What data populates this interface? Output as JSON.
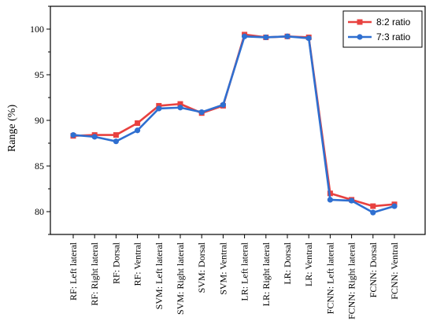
{
  "chart_data": {
    "type": "line",
    "title": "",
    "xlabel": "",
    "ylabel": "Range (%)",
    "ylim": [
      77.5,
      102.5
    ],
    "yticks": [
      80,
      85,
      90,
      95,
      100
    ],
    "grid": false,
    "legend_position": "top-right",
    "categories": [
      "RF: Left lateral",
      "RF: Right lateral",
      "RF: Dorsal",
      "RF: Ventral",
      "SVM: Left lateral",
      "SVM: Right lateral",
      "SVM: Dorsal",
      "SVM: Ventral",
      "LR: Left lateral",
      "LR: Right lateral",
      "LR: Dorsal",
      "LR: Ventral",
      "FCNN: Left lateral",
      "FCNN: Right lateral",
      "FCNN: Dorsal",
      "FCNN: Ventral"
    ],
    "series": [
      {
        "name": "8:2 ratio",
        "color": "#e8413f",
        "marker": "square",
        "values": [
          88.3,
          88.4,
          88.4,
          89.7,
          91.6,
          91.8,
          90.8,
          91.6,
          99.4,
          99.1,
          99.2,
          99.1,
          82.0,
          81.3,
          80.6,
          80.8
        ]
      },
      {
        "name": "7:3 ratio",
        "color": "#2f6fd0",
        "marker": "circle",
        "values": [
          88.4,
          88.2,
          87.7,
          88.9,
          91.3,
          91.4,
          90.9,
          91.7,
          99.2,
          99.1,
          99.2,
          99.0,
          81.3,
          81.2,
          79.9,
          80.6
        ]
      }
    ]
  }
}
